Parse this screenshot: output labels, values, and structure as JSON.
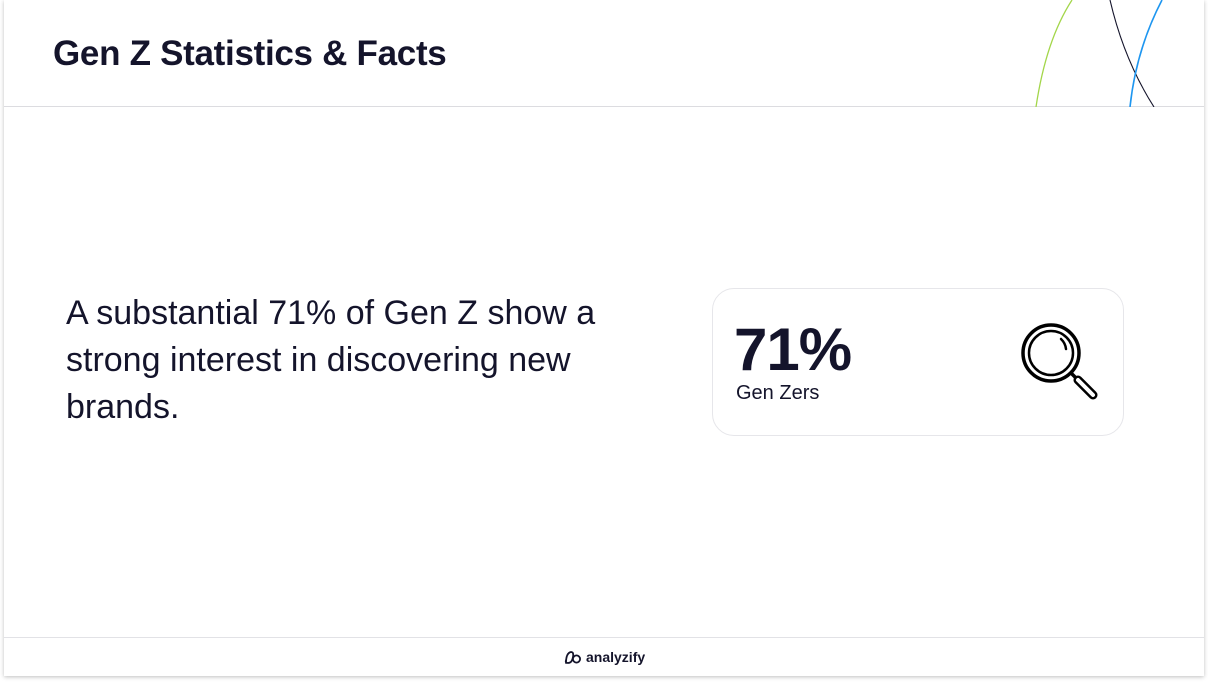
{
  "header": {
    "title": "Gen Z Statistics & Facts"
  },
  "main": {
    "statement": "A substantial 71% of Gen Z show a strong interest in discovering new brands."
  },
  "stat_card": {
    "value": "71%",
    "label": "Gen Zers",
    "icon": "magnifying-glass-icon"
  },
  "footer": {
    "brand_name": "analyzify",
    "brand_icon": "analyzify-logo-icon"
  },
  "colors": {
    "text": "#14142b",
    "accent_green": "#a3d64a",
    "accent_blue": "#1e96f0",
    "accent_dark": "#14142b",
    "divider": "#dcdce0"
  }
}
